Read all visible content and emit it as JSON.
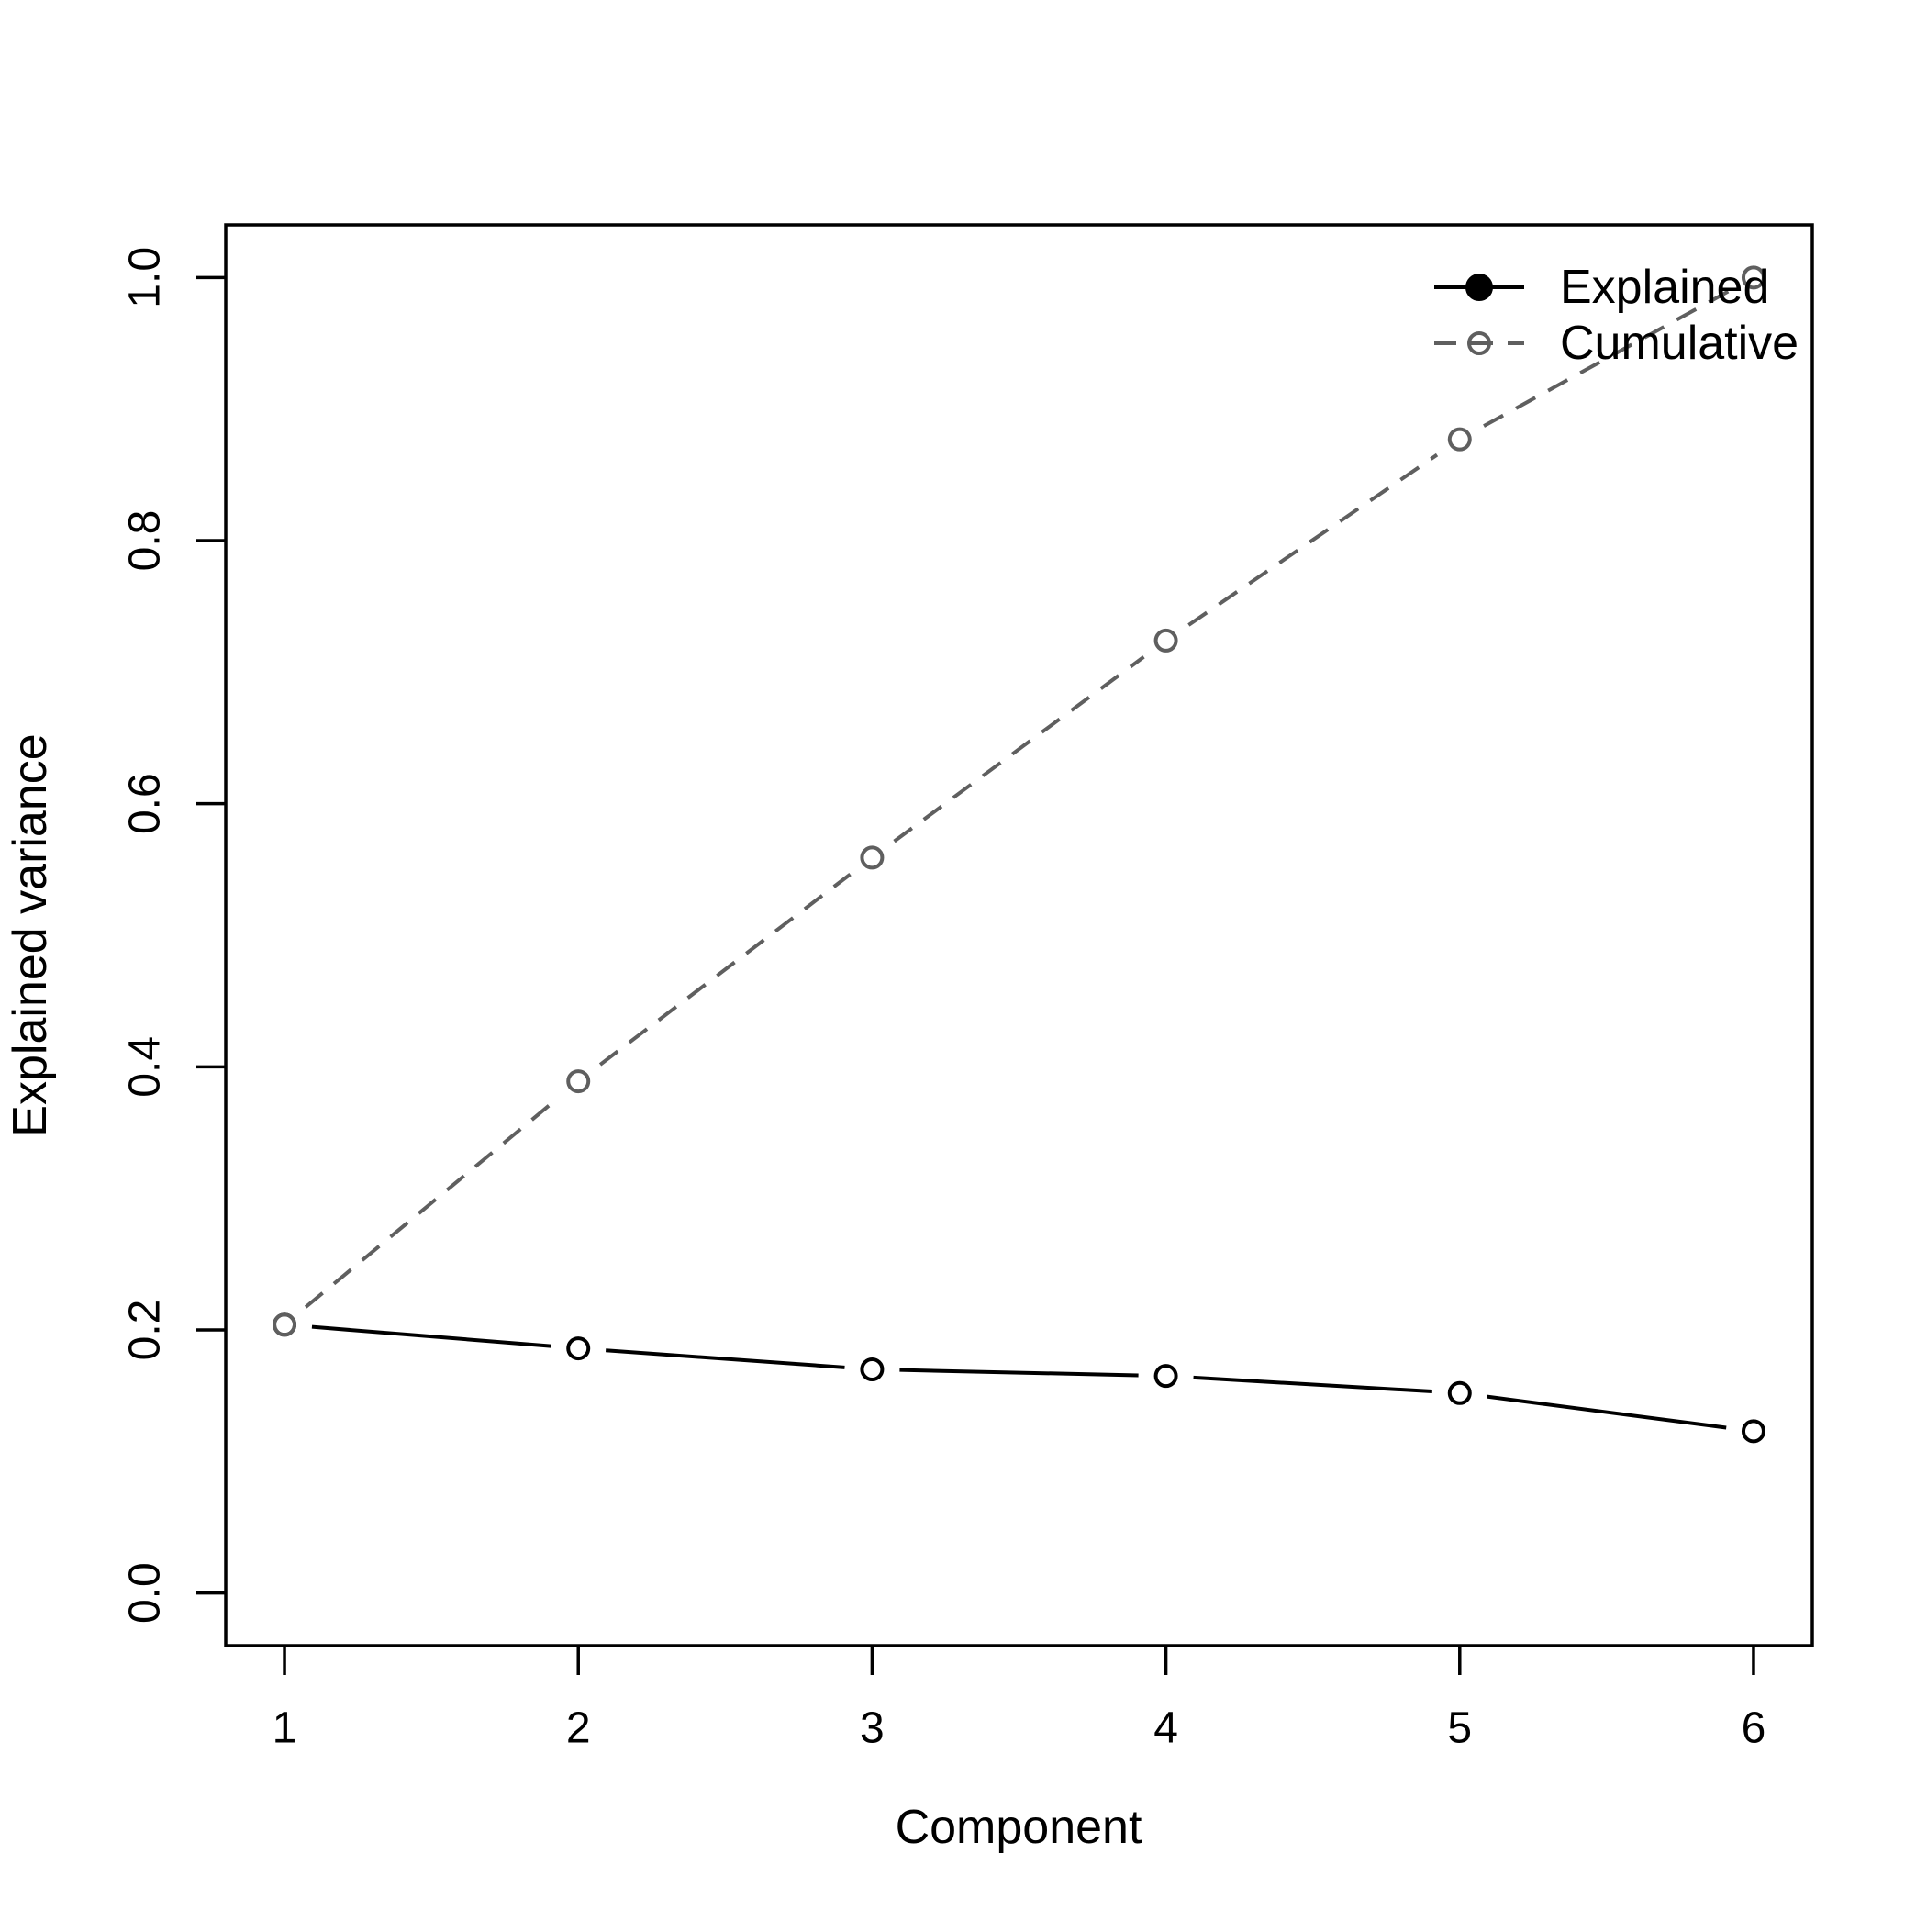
{
  "figure": {
    "background": "#ffffff"
  },
  "chart_data": {
    "type": "line",
    "title": "",
    "xlabel": "Component",
    "ylabel": "Explained variance",
    "x": [
      1,
      2,
      3,
      4,
      5,
      6
    ],
    "x_tick_labels": [
      "1",
      "2",
      "3",
      "4",
      "5",
      "6"
    ],
    "y_ticks": [
      0.0,
      0.2,
      0.4,
      0.6,
      0.8,
      1.0
    ],
    "y_tick_labels": [
      "0.0",
      "0.2",
      "0.4",
      "0.6",
      "0.8",
      "1.0"
    ],
    "xlim": [
      1,
      6
    ],
    "ylim": [
      0,
      1
    ],
    "grid": false,
    "legend_position": "topright",
    "legend_box": false,
    "series": [
      {
        "name": "Explained",
        "values": [
          0.204,
          0.186,
          0.17,
          0.165,
          0.152,
          0.123
        ],
        "color": "#000000",
        "line_style": "solid",
        "marker": "open-circle",
        "legend_marker": "filled-circle"
      },
      {
        "name": "Cumulative",
        "values": [
          0.204,
          0.389,
          0.559,
          0.724,
          0.877,
          1.0
        ],
        "color": "#5f5f5f",
        "line_style": "dashed",
        "marker": "open-circle",
        "legend_marker": "open-circle"
      }
    ]
  }
}
